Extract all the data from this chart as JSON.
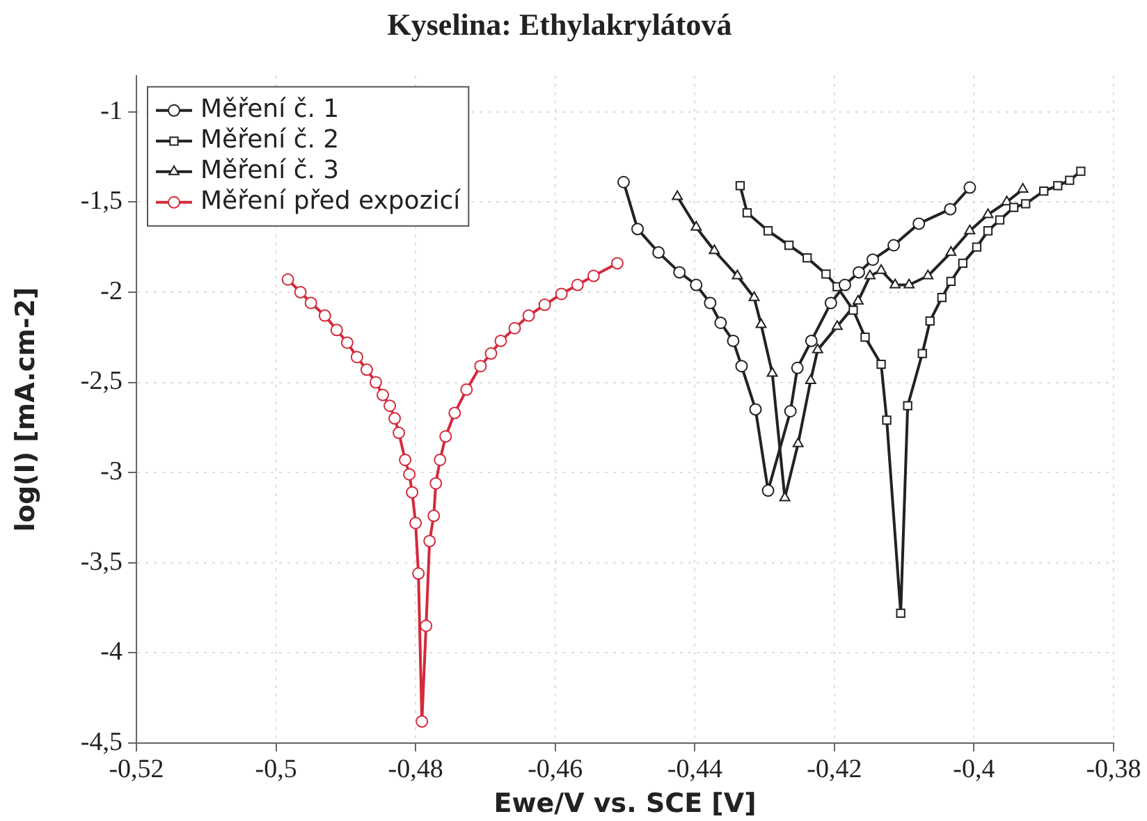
{
  "chart_data": {
    "type": "line",
    "title": "Kyselina: Ethylakrylátová",
    "xlabel": "Ewe/V vs. SCE [V]",
    "ylabel": "log(I) [mA.cm-2]",
    "xlim": [
      -0.52,
      -0.38
    ],
    "xticks": [
      {
        "value": -0.52,
        "label": "-0,52"
      },
      {
        "value": -0.5,
        "label": "-0,5"
      },
      {
        "value": -0.48,
        "label": "-0,48"
      },
      {
        "value": -0.46,
        "label": "-0,46"
      },
      {
        "value": -0.44,
        "label": "-0,44"
      },
      {
        "value": -0.42,
        "label": "-0,42"
      },
      {
        "value": -0.4,
        "label": "-0,4"
      },
      {
        "value": -0.38,
        "label": "-0,38"
      }
    ],
    "ylim": [
      -4.5,
      -0.8
    ],
    "yticks": [
      {
        "value": -4.5,
        "label": "-4,5"
      },
      -4,
      {
        "value": -3.5,
        "label": "-3,5"
      },
      -3,
      {
        "value": -2.5,
        "label": "-2,5"
      },
      -2,
      {
        "value": -1.5,
        "label": "-1,5"
      },
      -1
    ],
    "grid": true,
    "legend": "top left",
    "line_style": "solid",
    "series": [
      {
        "name": "Měření č. 1",
        "color": "#222222",
        "marker": "circle",
        "x": [
          -0.4502,
          -0.4482,
          -0.4452,
          -0.4422,
          -0.4398,
          -0.4378,
          -0.4363,
          -0.4345,
          -0.4333,
          -0.4313,
          -0.4295,
          -0.4263,
          -0.4253,
          -0.4233,
          -0.4205,
          -0.4185,
          -0.4165,
          -0.4145,
          -0.4115,
          -0.4079,
          -0.4034,
          -0.4006
        ],
        "values": [
          -1.39,
          -1.65,
          -1.78,
          -1.89,
          -1.96,
          -2.06,
          -2.17,
          -2.27,
          -2.41,
          -2.65,
          -3.1,
          -2.66,
          -2.42,
          -2.27,
          -2.06,
          -1.96,
          -1.89,
          -1.82,
          -1.74,
          -1.62,
          -1.54,
          -1.42
        ]
      },
      {
        "name": "Měření č. 2",
        "color": "#222222",
        "marker": "square",
        "x": [
          -0.4335,
          -0.4325,
          -0.4295,
          -0.4265,
          -0.4239,
          -0.4212,
          -0.4196,
          -0.4173,
          -0.4156,
          -0.4133,
          -0.4125,
          -0.4105,
          -0.4095,
          -0.4074,
          -0.4063,
          -0.4046,
          -0.4033,
          -0.4016,
          -0.3996,
          -0.398,
          -0.3963,
          -0.3943,
          -0.3926,
          -0.39,
          -0.388,
          -0.3863,
          -0.3847
        ],
        "values": [
          -1.41,
          -1.56,
          -1.66,
          -1.74,
          -1.81,
          -1.9,
          -1.97,
          -2.1,
          -2.25,
          -2.4,
          -2.71,
          -3.78,
          -2.63,
          -2.34,
          -2.16,
          -2.03,
          -1.94,
          -1.84,
          -1.75,
          -1.66,
          -1.6,
          -1.53,
          -1.51,
          -1.44,
          -1.41,
          -1.38,
          -1.33
        ]
      },
      {
        "name": "Měření č. 3",
        "color": "#222222",
        "marker": "triangle",
        "x": [
          -0.4425,
          -0.4398,
          -0.4372,
          -0.4339,
          -0.4315,
          -0.4305,
          -0.4289,
          -0.4271,
          -0.4252,
          -0.4234,
          -0.4224,
          -0.4196,
          -0.4166,
          -0.4149,
          -0.4133,
          -0.4113,
          -0.4093,
          -0.4066,
          -0.4033,
          -0.4006,
          -0.398,
          -0.3953,
          -0.393
        ],
        "values": [
          -1.47,
          -1.64,
          -1.77,
          -1.91,
          -2.03,
          -2.18,
          -2.45,
          -3.14,
          -2.84,
          -2.49,
          -2.32,
          -2.19,
          -2.05,
          -1.91,
          -1.88,
          -1.96,
          -1.96,
          -1.91,
          -1.78,
          -1.66,
          -1.57,
          -1.5,
          -1.43
        ]
      },
      {
        "name": "Měření před expozicí",
        "color": "#d42a3c",
        "marker": "circle",
        "x": [
          -0.4983,
          -0.4965,
          -0.495,
          -0.493,
          -0.4913,
          -0.4898,
          -0.4884,
          -0.487,
          -0.4857,
          -0.4847,
          -0.4837,
          -0.483,
          -0.4824,
          -0.4815,
          -0.4809,
          -0.4805,
          -0.48,
          -0.4796,
          -0.4791,
          -0.4785,
          -0.478,
          -0.4774,
          -0.4771,
          -0.4765,
          -0.4757,
          -0.4744,
          -0.4727,
          -0.4707,
          -0.4692,
          -0.4678,
          -0.4658,
          -0.4638,
          -0.4615,
          -0.4591,
          -0.4568,
          -0.4545,
          -0.4511
        ],
        "values": [
          -1.93,
          -2.0,
          -2.06,
          -2.13,
          -2.21,
          -2.28,
          -2.36,
          -2.43,
          -2.5,
          -2.57,
          -2.63,
          -2.7,
          -2.78,
          -2.93,
          -3.01,
          -3.11,
          -3.28,
          -3.56,
          -4.38,
          -3.85,
          -3.38,
          -3.24,
          -3.06,
          -2.93,
          -2.8,
          -2.67,
          -2.54,
          -2.41,
          -2.34,
          -2.27,
          -2.2,
          -2.13,
          -2.07,
          -2.01,
          -1.96,
          -1.91,
          -1.84
        ]
      }
    ]
  }
}
